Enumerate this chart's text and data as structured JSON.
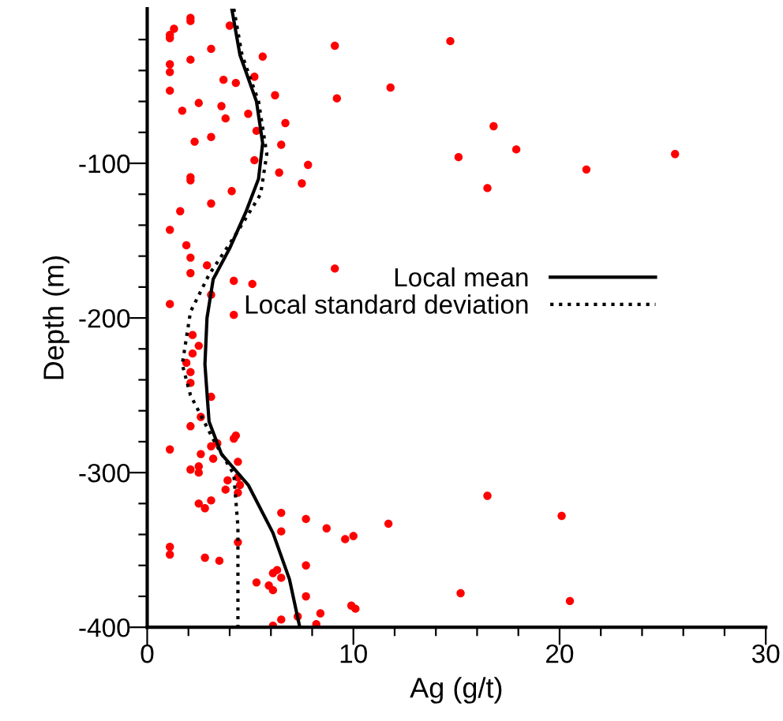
{
  "chart_data": {
    "type": "scatter",
    "xlabel": "Ag (g/t)",
    "ylabel": "Depth (m)",
    "xlim": [
      0,
      30
    ],
    "ylim": [
      -400,
      0
    ],
    "xticks": [
      0,
      {
        "value": 2,
        "label": null
      },
      {
        "value": 4,
        "label": null
      },
      {
        "value": 6,
        "label": null
      },
      {
        "value": 8,
        "label": null
      },
      10,
      {
        "value": 12,
        "label": null
      },
      {
        "value": 14,
        "label": null
      },
      {
        "value": 16,
        "label": null
      },
      {
        "value": 18,
        "label": null
      },
      20,
      {
        "value": 22,
        "label": null
      },
      {
        "value": 24,
        "label": null
      },
      {
        "value": 26,
        "label": null
      },
      {
        "value": 28,
        "label": null
      },
      30
    ],
    "yticks": [
      -400,
      {
        "value": -380,
        "label": null
      },
      {
        "value": -360,
        "label": null
      },
      {
        "value": -340,
        "label": null
      },
      {
        "value": -320,
        "label": null
      },
      -300,
      {
        "value": -280,
        "label": null
      },
      {
        "value": -260,
        "label": null
      },
      {
        "value": -240,
        "label": null
      },
      {
        "value": -220,
        "label": null
      },
      -200,
      {
        "value": -180,
        "label": null
      },
      {
        "value": -160,
        "label": null
      },
      {
        "value": -140,
        "label": null
      },
      {
        "value": -120,
        "label": null
      },
      -100,
      {
        "value": -80,
        "label": null
      },
      {
        "value": -60,
        "label": null
      },
      {
        "value": -40,
        "label": null
      },
      {
        "value": -20,
        "label": null
      }
    ],
    "grid": false,
    "legend": "right",
    "marker": "circle",
    "series": [
      {
        "color": "#ff0000",
        "x": [
          2.1,
          2.1,
          1.3,
          1.1,
          1.1,
          4.0,
          3.1,
          5.6,
          1.1,
          1.1,
          2.1,
          3.7,
          4.3,
          5.2,
          1.1,
          6.2,
          2.5,
          3.6,
          1.7,
          3.8,
          4.9,
          6.7,
          5.3,
          2.3,
          3.1,
          6.5,
          5.2,
          7.8,
          6.4,
          7.5,
          2.1,
          2.1,
          4.1,
          3.1,
          1.6,
          1.1,
          1.9,
          2.1,
          2.9,
          2.1,
          4.2,
          5.1,
          9.1,
          1.1,
          3.1,
          4.2,
          9.1,
          9.2,
          14.7,
          11.8,
          16.8,
          15.1,
          17.9,
          21.3,
          25.6,
          16.5,
          16.5,
          8.7,
          11.7,
          9.6,
          10.0,
          20.1,
          15.2,
          20.5,
          8.4,
          9.9,
          10.1,
          8.2,
          2.2,
          2.5,
          2.2,
          1.9,
          2.1,
          2.1,
          3.1,
          2.6,
          2.1,
          1.1,
          4.2,
          4.3,
          3.4,
          3.1,
          2.6,
          3.2,
          4.4,
          2.5,
          2.1,
          2.5,
          4.4,
          3.9,
          4.5,
          3.8,
          4.4,
          3.1,
          2.5,
          2.8,
          6.5,
          7.7,
          6.5,
          4.4,
          1.1,
          1.1,
          2.8,
          3.5,
          7.7,
          6.3,
          6.1,
          6.5,
          5.3,
          5.9,
          6.1,
          7.7,
          6.5,
          7.3,
          6.1
        ],
        "values": [
          -6,
          -8,
          -13,
          -17,
          -19,
          -11,
          -26,
          -31,
          -36,
          -41,
          -33,
          -46,
          -48,
          -44,
          -53,
          -56,
          -61,
          -63,
          -66,
          -71,
          -68,
          -74,
          -79,
          -86,
          -83,
          -88,
          -98,
          -101,
          -106,
          -113,
          -109,
          -111,
          -118,
          -126,
          -131,
          -143,
          -153,
          -161,
          -166,
          -171,
          -176,
          -178,
          -168,
          -191,
          -185,
          -198,
          -24,
          -58,
          -21,
          -51,
          -76,
          -96,
          -91,
          -104,
          -94,
          -116,
          -315,
          -336,
          -333,
          -343,
          -341,
          -328,
          -378,
          -383,
          -391,
          -386,
          -388,
          -398,
          -211,
          -218,
          -223,
          -229,
          -235,
          -242,
          -251,
          -264,
          -270,
          -285,
          -278,
          -276,
          -281,
          -283,
          -288,
          -291,
          -293,
          -296,
          -298,
          -300,
          -303,
          -305,
          -308,
          -311,
          -313,
          -318,
          -320,
          -323,
          -326,
          -330,
          -338,
          -345,
          -348,
          -353,
          -355,
          -357,
          -360,
          -363,
          -365,
          -368,
          -371,
          -373,
          -376,
          -380,
          -395,
          -393,
          -399
        ]
      },
      {
        "type": "line",
        "name": "Local mean",
        "color": "#000000",
        "line_style": "solid",
        "marker": "none",
        "x": [
          4.1,
          4.5,
          5.3,
          5.6,
          5.4,
          4.8,
          4.0,
          3.2,
          2.9,
          2.8,
          3.0,
          3.6,
          4.9,
          6.1,
          6.9,
          7.4
        ],
        "values": [
          0,
          -30,
          -60,
          -87,
          -110,
          -131,
          -155,
          -175,
          -200,
          -230,
          -267,
          -288,
          -308,
          -339,
          -369,
          -400
        ]
      },
      {
        "type": "line",
        "name": "Local standard deviation",
        "color": "#000000",
        "line_style": "dotted",
        "marker": "none",
        "x": [
          4.2,
          4.6,
          5.4,
          5.8,
          5.5,
          4.2,
          3.0,
          2.1,
          1.7,
          2.1,
          3.3,
          4.2,
          4.4,
          4.4
        ],
        "values": [
          0,
          -30,
          -60,
          -94,
          -120,
          -148,
          -172,
          -196,
          -230,
          -250,
          -281,
          -301,
          -335,
          -400
        ]
      }
    ]
  }
}
